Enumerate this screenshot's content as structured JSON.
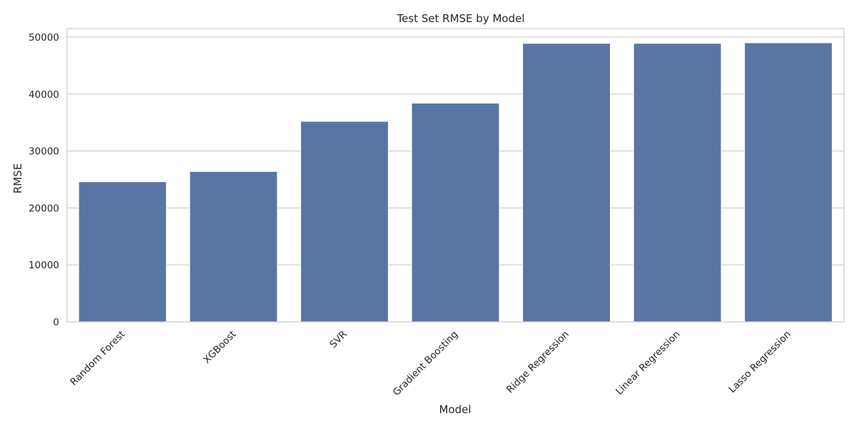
{
  "chart_data": {
    "type": "bar",
    "title": "Test Set RMSE by Model",
    "xlabel": "Model",
    "ylabel": "RMSE",
    "categories": [
      "Random Forest",
      "XGBoost",
      "SVR",
      "Gradient Boosting",
      "Ridge Regression",
      "Linear Regression",
      "Lasso Regression"
    ],
    "values": [
      24600,
      26400,
      35200,
      38400,
      48900,
      48900,
      49000
    ],
    "ylim": [
      0,
      51500
    ],
    "yticks": [
      0,
      10000,
      20000,
      30000,
      40000,
      50000
    ],
    "grid": "horizontal",
    "legend": "none",
    "bar_color": "#5975a4",
    "grid_color": "#cccccc",
    "axis_color": "#cccccc"
  }
}
